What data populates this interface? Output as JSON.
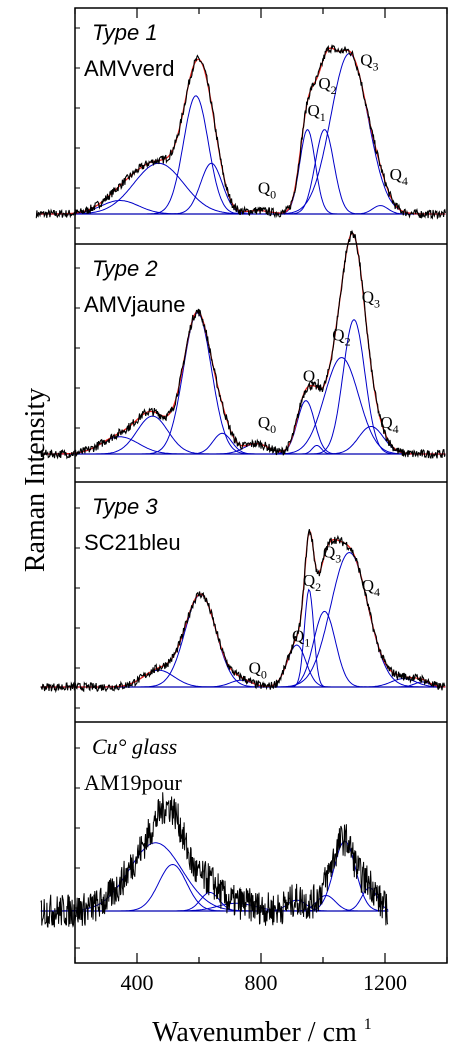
{
  "chart_data": {
    "type": "line",
    "stacked_panels": true,
    "xlabel": "Wavenumber / cm",
    "xlabel_superscript": "1",
    "ylabel": "Raman Intensity",
    "xlim": [
      200,
      1400
    ],
    "x_ticks": [
      400,
      800,
      1200
    ],
    "colors": {
      "spectrum": "#000000",
      "fit": "#e8201b",
      "components": "#0000c8",
      "baseline": "#0000b0"
    },
    "panels": [
      {
        "type_label": "Type 1",
        "type_italic_sans": true,
        "sample": "AMVverd",
        "ymax": 1.0,
        "components": [
          [
            345,
            60,
            0.08
          ],
          [
            470,
            80,
            0.3
          ],
          [
            590,
            40,
            0.7
          ],
          [
            640,
            35,
            0.3
          ],
          [
            790,
            40,
            0.02
          ],
          [
            950,
            25,
            0.5
          ],
          [
            1005,
            30,
            0.5
          ],
          [
            1085,
            60,
            0.95
          ],
          [
            1185,
            25,
            0.05
          ]
        ],
        "q_labels": [
          {
            "sym": "Q",
            "sub": "0",
            "x": 790,
            "y": 0.12
          },
          {
            "sym": "Q",
            "sub": "1",
            "x": 950,
            "y": 0.58
          },
          {
            "sym": "Q",
            "sub": "2",
            "x": 985,
            "y": 0.74
          },
          {
            "sym": "Q",
            "sub": "3",
            "x": 1120,
            "y": 0.88
          },
          {
            "sym": "Q",
            "sub": "4",
            "x": 1215,
            "y": 0.2
          }
        ]
      },
      {
        "type_label": "Type 2",
        "type_italic_sans": true,
        "sample": "AMVjaune",
        "ymax": 1.0,
        "components": [
          [
            345,
            60,
            0.1
          ],
          [
            450,
            50,
            0.22
          ],
          [
            595,
            45,
            0.82
          ],
          [
            675,
            30,
            0.12
          ],
          [
            785,
            40,
            0.06
          ],
          [
            945,
            28,
            0.31
          ],
          [
            1060,
            55,
            0.56
          ],
          [
            1100,
            35,
            0.78
          ],
          [
            1155,
            40,
            0.16
          ],
          [
            980,
            15,
            0.05
          ]
        ],
        "q_labels": [
          {
            "sym": "Q",
            "sub": "0",
            "x": 790,
            "y": 0.15
          },
          {
            "sym": "Q",
            "sub": "1",
            "x": 935,
            "y": 0.42
          },
          {
            "sym": "Q",
            "sub": "2",
            "x": 1030,
            "y": 0.66
          },
          {
            "sym": "Q",
            "sub": "3",
            "x": 1125,
            "y": 0.88
          },
          {
            "sym": "Q",
            "sub": "4",
            "x": 1185,
            "y": 0.15
          }
        ]
      },
      {
        "type_label": "Type 3",
        "type_italic_sans": true,
        "sample": "SC21bleu",
        "ymax": 1.0,
        "components": [
          [
            470,
            50,
            0.1
          ],
          [
            605,
            50,
            0.55
          ],
          [
            735,
            35,
            0.04
          ],
          [
            915,
            30,
            0.25
          ],
          [
            955,
            15,
            0.58
          ],
          [
            1005,
            35,
            0.45
          ],
          [
            1085,
            60,
            0.8
          ],
          [
            1260,
            40,
            0.05
          ],
          [
            1320,
            25,
            0.03
          ]
        ],
        "q_labels": [
          {
            "sym": "Q",
            "sub": "0",
            "x": 760,
            "y": 0.08
          },
          {
            "sym": "Q",
            "sub": "1",
            "x": 900,
            "y": 0.27
          },
          {
            "sym": "Q",
            "sub": "2",
            "x": 935,
            "y": 0.6
          },
          {
            "sym": "Q",
            "sub": "3",
            "x": 1000,
            "y": 0.77
          },
          {
            "sym": "Q",
            "sub": "4",
            "x": 1125,
            "y": 0.57
          }
        ]
      },
      {
        "type_label": "Cu° glass",
        "type_italic_sans": false,
        "sample": "AM19pour",
        "ymax": 1.0,
        "components": [
          [
            460,
            85,
            0.44
          ],
          [
            515,
            45,
            0.3
          ],
          [
            635,
            30,
            0.12
          ],
          [
            720,
            60,
            0.05
          ],
          [
            915,
            30,
            0.07
          ],
          [
            1010,
            30,
            0.1
          ],
          [
            1070,
            35,
            0.45
          ],
          [
            1150,
            25,
            0.15
          ]
        ],
        "q_labels": []
      }
    ]
  }
}
